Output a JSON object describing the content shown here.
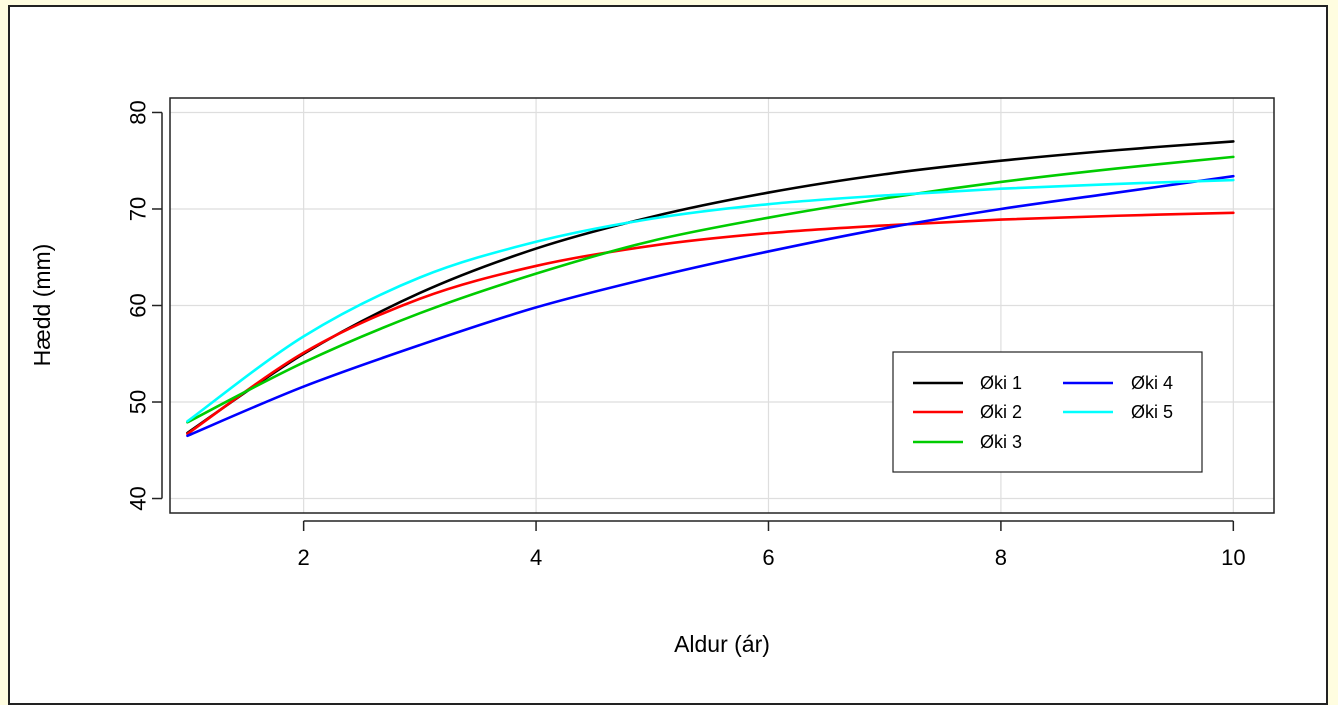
{
  "chart_data": {
    "type": "line",
    "title": "",
    "xlabel": "Aldur (ár)",
    "ylabel": "Hædd (mm)",
    "xlim": [
      0.85,
      10.35
    ],
    "ylim": [
      38.5,
      81.5
    ],
    "xticks": [
      2,
      4,
      6,
      8,
      10
    ],
    "yticks": [
      40,
      50,
      60,
      70,
      80
    ],
    "grid": true,
    "legend_position": "bottom-right",
    "x": [
      1,
      2,
      3,
      4,
      5,
      6,
      7,
      8,
      9,
      10
    ],
    "series": [
      {
        "name": "Øki 1",
        "color": "#000000",
        "values": [
          46.8,
          55.0,
          61.3,
          65.9,
          69.2,
          71.7,
          73.6,
          75.0,
          76.1,
          77.0
        ]
      },
      {
        "name": "Øki 2",
        "color": "#ff0000",
        "values": [
          46.7,
          55.1,
          60.7,
          64.1,
          66.2,
          67.5,
          68.3,
          68.9,
          69.3,
          69.6
        ]
      },
      {
        "name": "Øki 3",
        "color": "#00cc00",
        "values": [
          47.9,
          54.1,
          59.2,
          63.3,
          66.7,
          69.1,
          71.1,
          72.8,
          74.2,
          75.4
        ]
      },
      {
        "name": "Øki 4",
        "color": "#0000ff",
        "values": [
          46.5,
          51.6,
          55.9,
          59.8,
          62.9,
          65.6,
          68.0,
          70.0,
          71.7,
          73.4
        ]
      },
      {
        "name": "Øki 5",
        "color": "#00ffff",
        "values": [
          48.0,
          56.8,
          62.9,
          66.6,
          69.0,
          70.5,
          71.4,
          72.1,
          72.6,
          73.0
        ]
      }
    ]
  }
}
